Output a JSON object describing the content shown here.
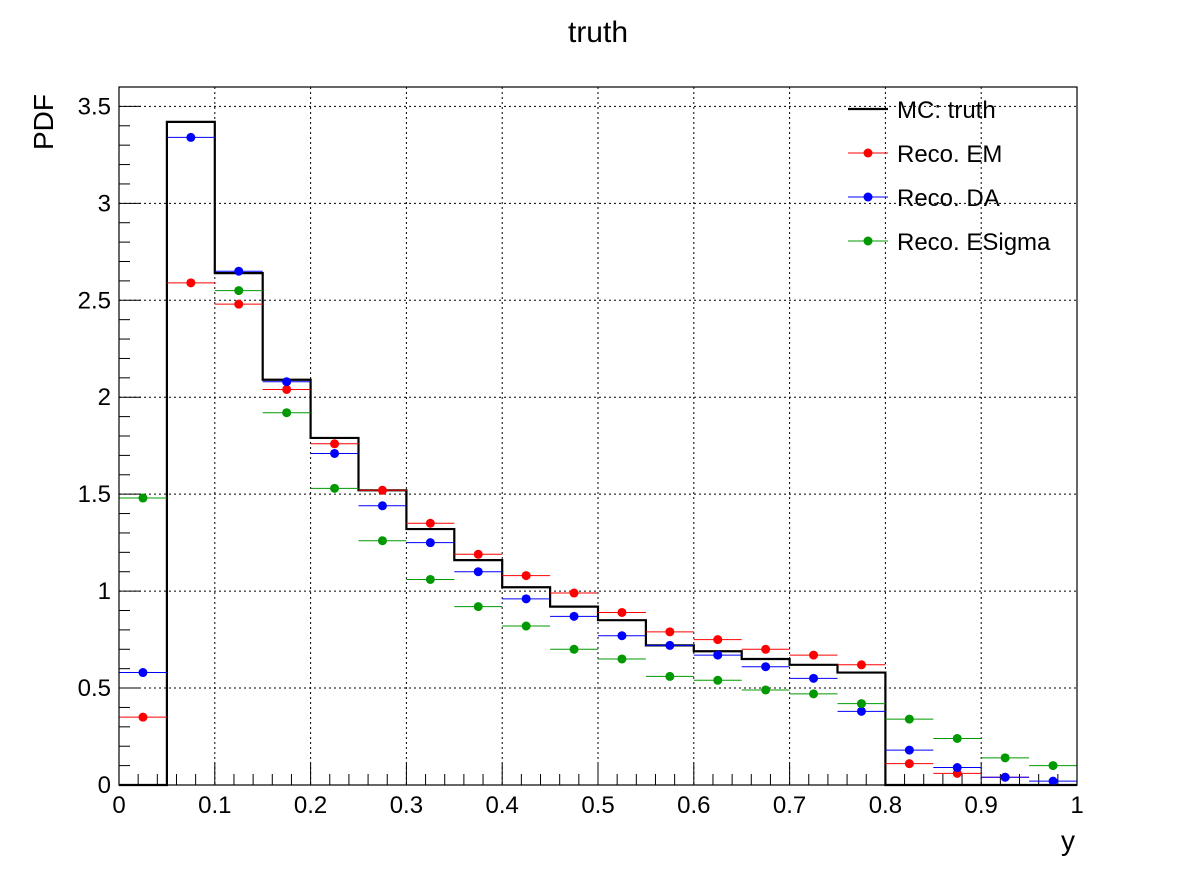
{
  "chart_data": {
    "type": "line",
    "title": "truth",
    "xlabel": "y",
    "ylabel": "PDF",
    "xlim": [
      0,
      1
    ],
    "ylim": [
      0,
      3.6
    ],
    "grid": true,
    "legend_position": "top-right",
    "x_ticks": [
      "0",
      "0.1",
      "0.2",
      "0.3",
      "0.4",
      "0.5",
      "0.6",
      "0.7",
      "0.8",
      "0.9",
      "1"
    ],
    "y_ticks": [
      "0",
      "0.5",
      "1",
      "1.5",
      "2",
      "2.5",
      "3",
      "3.5"
    ],
    "bin_edges": [
      0,
      0.05,
      0.1,
      0.15,
      0.2,
      0.25,
      0.3,
      0.35,
      0.4,
      0.45,
      0.5,
      0.55,
      0.6,
      0.65,
      0.7,
      0.75,
      0.8,
      0.85,
      0.9,
      0.95,
      1.0
    ],
    "x_centers": [
      0.025,
      0.075,
      0.125,
      0.175,
      0.225,
      0.275,
      0.325,
      0.375,
      0.425,
      0.475,
      0.525,
      0.575,
      0.625,
      0.675,
      0.725,
      0.775,
      0.825,
      0.875,
      0.925,
      0.975
    ],
    "series": [
      {
        "name": "MC: truth",
        "style": "histogram",
        "color": "#000000",
        "values": [
          0,
          3.42,
          2.64,
          2.09,
          1.79,
          1.52,
          1.32,
          1.16,
          1.02,
          0.92,
          0.85,
          0.72,
          0.69,
          0.65,
          0.62,
          0.58,
          0,
          0,
          0,
          0
        ]
      },
      {
        "name": "Reco. EM",
        "style": "points",
        "color": "#ff0000",
        "values": [
          0.35,
          2.59,
          2.48,
          2.04,
          1.76,
          1.52,
          1.35,
          1.19,
          1.08,
          0.99,
          0.89,
          0.79,
          0.75,
          0.7,
          0.67,
          0.62,
          0.11,
          0.06,
          0.04,
          0.0
        ]
      },
      {
        "name": "Reco. DA",
        "style": "points",
        "color": "#0000ff",
        "values": [
          0.58,
          3.34,
          2.65,
          2.08,
          1.71,
          1.44,
          1.25,
          1.1,
          0.96,
          0.87,
          0.77,
          0.72,
          0.67,
          0.61,
          0.55,
          0.38,
          0.18,
          0.09,
          0.04,
          0.02
        ]
      },
      {
        "name": "Reco. ESigma",
        "style": "points",
        "color": "#009900",
        "values": [
          1.48,
          0,
          2.55,
          1.92,
          1.53,
          1.26,
          1.06,
          0.92,
          0.82,
          0.7,
          0.65,
          0.56,
          0.54,
          0.49,
          0.47,
          0.42,
          0.34,
          0.24,
          0.14,
          0.1
        ]
      }
    ]
  }
}
